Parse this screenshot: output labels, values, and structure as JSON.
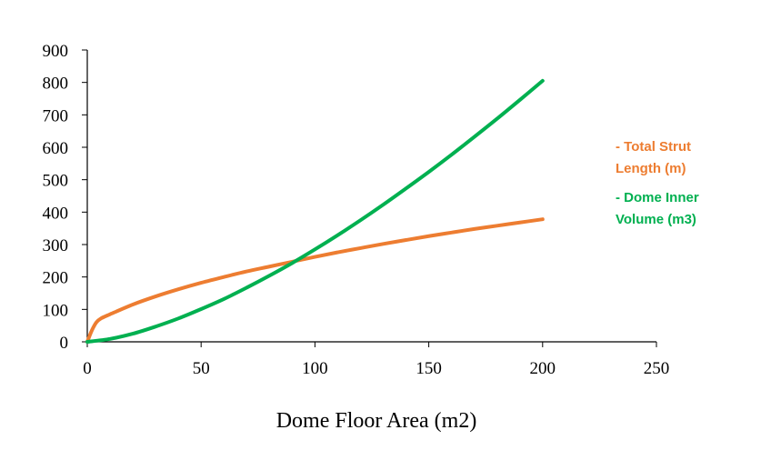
{
  "chart_data": {
    "type": "line",
    "title": "",
    "xlabel": "Dome Floor Area (m2)",
    "ylabel": "",
    "xlim": [
      0,
      250
    ],
    "ylim": [
      0,
      900
    ],
    "x_ticks": [
      "0",
      "50",
      "100",
      "150",
      "200",
      "250"
    ],
    "y_ticks": [
      "0",
      "100",
      "200",
      "300",
      "400",
      "500",
      "600",
      "700",
      "800",
      "900"
    ],
    "grid": false,
    "legend_position": "right",
    "series": [
      {
        "name": "Total Strut Length (m)",
        "legend_lines": [
          "- Total Strut",
          "Length (m)"
        ],
        "color": "#ED7D31",
        "x": [
          0,
          2,
          4,
          6,
          10,
          20,
          30,
          40,
          50,
          60,
          70,
          80,
          90,
          100,
          110,
          120,
          130,
          140,
          150,
          160,
          170,
          180,
          190,
          200
        ],
        "y": [
          0,
          35,
          60,
          72,
          85,
          115,
          140,
          162,
          182,
          200,
          217,
          232,
          247,
          262,
          276,
          289,
          302,
          314,
          326,
          337,
          348,
          358,
          368,
          378
        ]
      },
      {
        "name": "Dome Inner Volume (m3)",
        "legend_lines": [
          "- Dome Inner",
          "Volume (m3)"
        ],
        "color": "#00B050",
        "x": [
          0,
          10,
          20,
          30,
          40,
          50,
          60,
          70,
          80,
          90,
          100,
          110,
          120,
          130,
          140,
          150,
          160,
          170,
          180,
          190,
          200
        ],
        "y": [
          0,
          9,
          25,
          47,
          72,
          101,
          132,
          167,
          204,
          243,
          285,
          329,
          375,
          423,
          473,
          524,
          577,
          632,
          688,
          746,
          805
        ]
      }
    ]
  }
}
